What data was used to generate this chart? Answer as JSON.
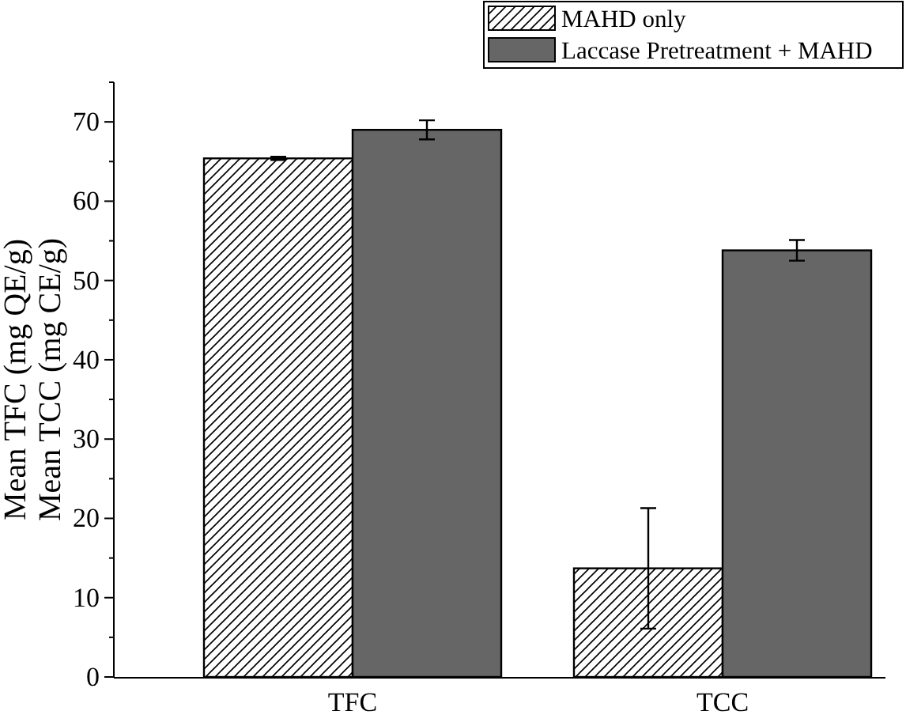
{
  "chart_data": {
    "type": "bar",
    "categories": [
      "TFC",
      "TCC"
    ],
    "ylabel": "Mean TFC (mg QE/g)\nMean TCC (mg CE/g)",
    "ylim": [
      0,
      75
    ],
    "yticks": [
      0,
      {
        "value": 5,
        "label": null
      },
      10,
      {
        "value": 15,
        "label": null
      },
      20,
      {
        "value": 25,
        "label": null
      },
      30,
      {
        "value": 35,
        "label": null
      },
      40,
      {
        "value": 45,
        "label": null
      },
      50,
      {
        "value": 55,
        "label": null
      },
      60,
      {
        "value": 65,
        "label": null
      },
      70,
      {
        "value": 75,
        "label": null
      }
    ],
    "legend": "top right",
    "grid": false,
    "series": [
      {
        "name": "MAHD only",
        "color": "#000000",
        "values": [
          65.4,
          13.7
        ],
        "errors": [
          0.2,
          7.6
        ]
      },
      {
        "name": "Laccase Pretreatment + MAHD",
        "color": "#666666",
        "values": [
          69.0,
          53.8
        ],
        "errors": [
          1.2,
          1.3
        ]
      }
    ]
  }
}
